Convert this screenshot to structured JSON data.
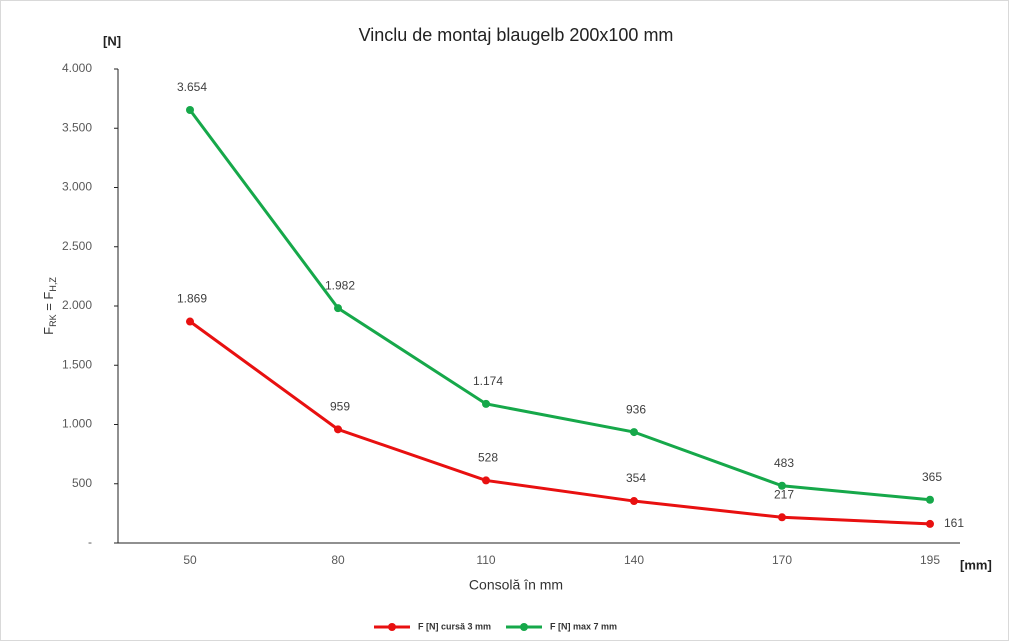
{
  "chart_data": {
    "type": "line",
    "title": "Vinclu de montaj blaugelb 200x100 mm",
    "y_unit": "[N]",
    "x_unit": "[mm]",
    "xlabel": "Consolă în mm",
    "ylabel": [
      "F",
      "RK",
      " = F",
      "H,Z"
    ],
    "categories": [
      "50",
      "80",
      "110",
      "140",
      "170",
      "195"
    ],
    "series": [
      {
        "name": "F [N] cursă 3 mm",
        "color": "#e81010",
        "values": [
          1869,
          959,
          528,
          354,
          217,
          161
        ],
        "value_labels": [
          "1.869",
          "959",
          "528",
          "354",
          "217",
          "161"
        ]
      },
      {
        "name": "F [N] max 7 mm",
        "color": "#16a84a",
        "values": [
          3654,
          1982,
          1174,
          936,
          483,
          365
        ],
        "value_labels": [
          "3.654",
          "1.982",
          "1.174",
          "936",
          "483",
          "365"
        ]
      }
    ],
    "ylim": [
      0,
      4000
    ],
    "yticks": [
      {
        "value": 0,
        "label": "-"
      },
      500,
      {
        "value": 1000,
        "label": "1.000"
      },
      {
        "value": 1500,
        "label": "1.500"
      },
      {
        "value": 2000,
        "label": "2.000"
      },
      {
        "value": 2500,
        "label": "2.500"
      },
      {
        "value": 3000,
        "label": "3.000"
      },
      {
        "value": 3500,
        "label": "3.500"
      },
      {
        "value": 4000,
        "label": "4.000"
      }
    ],
    "legend": "bottom"
  }
}
